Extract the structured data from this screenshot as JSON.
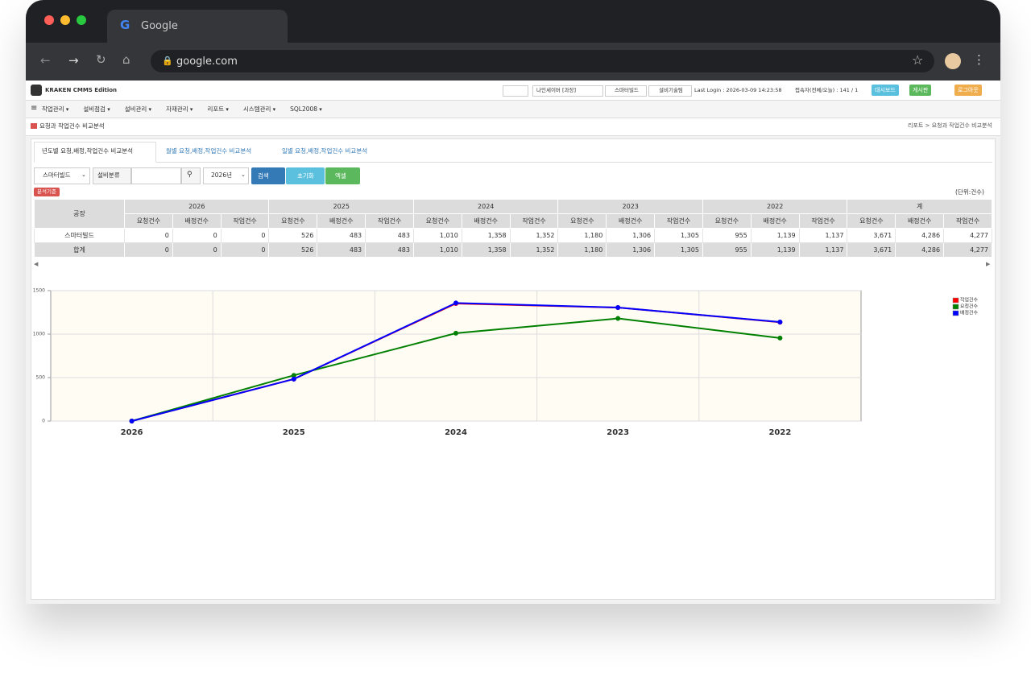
{
  "browser": {
    "tab_title": "Google",
    "url": "google.com"
  },
  "header": {
    "brand": "KRAKEN CMMS Edition",
    "user": "나인세이버 [과장]",
    "site": "스마터빌드",
    "team": "설비기술팀",
    "last_login": "Last Login : 2026-03-09 14:23:58",
    "visitors": "접속자(전체/오늘) : 141 / 1",
    "buttons": [
      "대시보드",
      "게시판",
      "로그아웃"
    ]
  },
  "menu": [
    "작업관리",
    "설비점검",
    "설비관리",
    "자재관리",
    "리포트",
    "시스템관리",
    "SQL2008"
  ],
  "page": {
    "title": "요청과 작업건수 비교분석",
    "breadcrumb": "리포트 > 요청과 작업건수 비교분석"
  },
  "tabs": [
    "년도별 요청,배정,작업건수 비교분석",
    "월별 요청,배정,작업건수 비교분석",
    "일별 요청,배정,작업건수 비교분석"
  ],
  "filters": {
    "site": "스마터빌드",
    "category_label": "설비분류",
    "year": "2026년",
    "buttons": [
      "검색",
      "초기화",
      "엑셀"
    ],
    "basis": "분석기준",
    "unit": "(단위:건수)"
  },
  "table": {
    "corner": "공장",
    "groups": [
      "2026",
      "2025",
      "2024",
      "2023",
      "2022",
      "계"
    ],
    "sub_columns": [
      "요청건수",
      "배정건수",
      "작업건수"
    ],
    "rows": [
      [
        "스마터빌드",
        "0",
        "0",
        "0",
        "526",
        "483",
        "483",
        "1,010",
        "1,358",
        "1,352",
        "1,180",
        "1,306",
        "1,305",
        "955",
        "1,139",
        "1,137",
        "3,671",
        "4,286",
        "4,277"
      ],
      [
        "합계",
        "0",
        "0",
        "0",
        "526",
        "483",
        "483",
        "1,010",
        "1,358",
        "1,352",
        "1,180",
        "1,306",
        "1,305",
        "955",
        "1,139",
        "1,137",
        "3,671",
        "4,286",
        "4,277"
      ]
    ]
  },
  "chart_data": {
    "type": "line",
    "categories": [
      "2026",
      "2025",
      "2024",
      "2023",
      "2022"
    ],
    "series": [
      {
        "name": "작업건수",
        "color": "#ff0000",
        "values": [
          0,
          483,
          1352,
          1305,
          1137
        ]
      },
      {
        "name": "요청건수",
        "color": "#008000",
        "values": [
          0,
          526,
          1010,
          1180,
          955
        ]
      },
      {
        "name": "배정건수",
        "color": "#0000ff",
        "values": [
          0,
          483,
          1358,
          1306,
          1139
        ]
      }
    ],
    "ylim": [
      0,
      1500
    ],
    "yticks": [
      0,
      500,
      1000,
      1500
    ],
    "grid": true,
    "legend": "top-right"
  }
}
